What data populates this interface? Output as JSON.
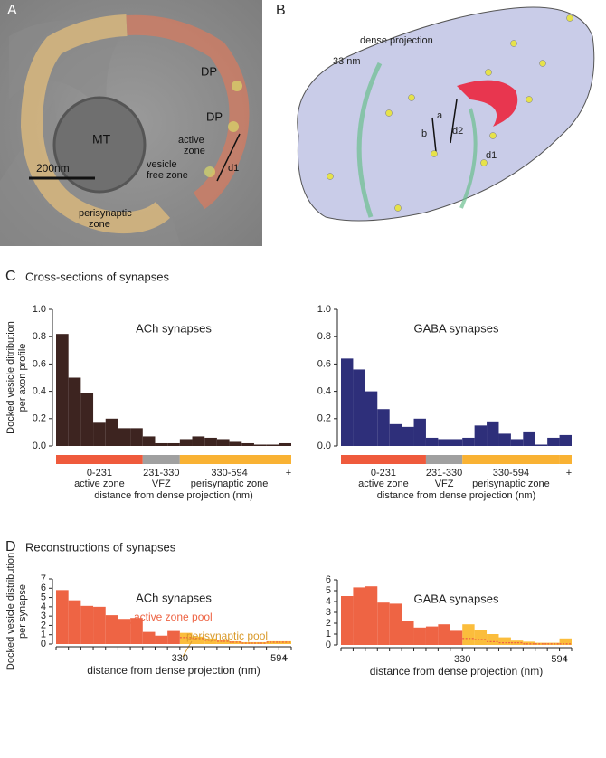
{
  "panels": {
    "A": {
      "letter": "A",
      "labels": [
        "MT",
        "DP",
        "DP",
        "active",
        "zone",
        "vesicle",
        "free zone",
        "d1",
        "perisynaptic",
        "zone"
      ],
      "scale": "200nm"
    },
    "B": {
      "letter": "B",
      "labels": [
        "dense projection",
        "33 nm",
        "a",
        "b",
        "d2",
        "d1"
      ]
    }
  },
  "sections": [
    {
      "letter": "C",
      "title": "Cross-sections of synapses"
    },
    {
      "letter": "D",
      "title": "Reconstructions of synapses"
    }
  ],
  "chart_data": [
    {
      "type": "histogram",
      "title": "ACh synapses",
      "y_label": [
        "Docked vesicle ditribution",
        "per axon profile"
      ],
      "x_label": "distance from dense projection (nm)",
      "bins": [
        0,
        33,
        66,
        99,
        132,
        165,
        198,
        231,
        264,
        297,
        330,
        363,
        396,
        429,
        462,
        495,
        528,
        561,
        594,
        627
      ],
      "values": [
        0.82,
        0.5,
        0.39,
        0.17,
        0.2,
        0.13,
        0.13,
        0.07,
        0.02,
        0.02,
        0.05,
        0.07,
        0.06,
        0.05,
        0.03,
        0.02,
        0.01,
        0.01,
        0.02
      ],
      "color": "#3d2420",
      "xlim": [
        0,
        627
      ],
      "ylim": [
        0,
        1.0
      ],
      "yticks": [
        {
          "value": 0,
          "label": "0.0"
        },
        0.2,
        0.4,
        0.6,
        0.8,
        {
          "value": 1,
          "label": "1.0"
        }
      ],
      "regions": [
        {
          "label": "0-231",
          "sublabel": "active zone",
          "range": [
            0,
            231
          ],
          "color": "#ef5a3c"
        },
        {
          "label": "231-330",
          "sublabel": "VFZ",
          "range": [
            231,
            330
          ],
          "color": "#a0a0a0"
        },
        {
          "label": "330-594",
          "sublabel": "perisynaptic zone",
          "range": [
            330,
            594
          ],
          "color": "#f9b233"
        },
        {
          "label": "+",
          "range": [
            594,
            627
          ],
          "color": "#f9b233"
        }
      ]
    },
    {
      "type": "histogram",
      "title": "GABA synapses",
      "x_label": "distance from dense projection (nm)",
      "bins": [
        0,
        33,
        66,
        99,
        132,
        165,
        198,
        231,
        264,
        297,
        330,
        363,
        396,
        429,
        462,
        495,
        528,
        561,
        594,
        627
      ],
      "values": [
        0.64,
        0.56,
        0.4,
        0.27,
        0.16,
        0.14,
        0.2,
        0.06,
        0.05,
        0.05,
        0.06,
        0.15,
        0.18,
        0.09,
        0.05,
        0.1,
        0.01,
        0.06,
        0.08
      ],
      "color": "#2e2f7a",
      "xlim": [
        0,
        627
      ],
      "ylim": [
        0,
        1.0
      ],
      "yticks": [
        {
          "value": 0,
          "label": "0.0"
        },
        0.2,
        0.4,
        0.6,
        0.8,
        {
          "value": 1,
          "label": "1.0"
        }
      ],
      "regions": [
        {
          "label": "0-231",
          "sublabel": "active zone",
          "range": [
            0,
            231
          ],
          "color": "#ef5a3c"
        },
        {
          "label": "231-330",
          "sublabel": "VFZ",
          "range": [
            231,
            330
          ],
          "color": "#a0a0a0"
        },
        {
          "label": "330-594",
          "sublabel": "perisynaptic zone",
          "range": [
            330,
            594
          ],
          "color": "#f9b233"
        },
        {
          "label": "+",
          "range": [
            594,
            627
          ],
          "color": "#f9b233"
        }
      ]
    },
    {
      "type": "histogram",
      "title": "ACh synapses",
      "y_label": [
        "Docked vesicle distribution",
        "per synapse"
      ],
      "x_label": "distance from dense projection (nm)",
      "legend": true,
      "bins": [
        0,
        33,
        66,
        99,
        132,
        165,
        198,
        231,
        264,
        297,
        330,
        363,
        396,
        429,
        462,
        495,
        528,
        561,
        594,
        627
      ],
      "series": [
        {
          "name": "active zone pool",
          "color": "#ee6444",
          "values": [
            5.8,
            4.7,
            4.1,
            4.0,
            3.1,
            2.7,
            2.8,
            1.3,
            0.9,
            1.4,
            0.7,
            0.6,
            0.4,
            0.3,
            0.2,
            0.1,
            0.1,
            0.2,
            0.2
          ]
        },
        {
          "name": "perisynaptic pool",
          "color": "#fbbd3c",
          "values": [
            null,
            null,
            null,
            null,
            null,
            null,
            null,
            null,
            null,
            null,
            1.2,
            0.8,
            0.6,
            0.4,
            0.3,
            0.2,
            0.2,
            0.3,
            0.3
          ]
        }
      ],
      "xlim": [
        0,
        627
      ],
      "ylim": [
        0,
        7
      ],
      "yticks": [
        0,
        1,
        2,
        3,
        4,
        5,
        6,
        7
      ],
      "xticks": [
        330,
        594,
        {
          "value": 610.5,
          "label": "+"
        }
      ]
    },
    {
      "type": "histogram",
      "title": "GABA synapses",
      "x_label": "distance from dense projection (nm)",
      "legend": false,
      "bins": [
        0,
        33,
        66,
        99,
        132,
        165,
        198,
        231,
        264,
        297,
        330,
        363,
        396,
        429,
        462,
        495,
        528,
        561,
        594,
        627
      ],
      "series": [
        {
          "name": "active zone pool",
          "color": "#ee6444",
          "values": [
            4.5,
            5.3,
            5.4,
            3.9,
            3.8,
            2.2,
            1.6,
            1.7,
            1.9,
            1.3,
            0.6,
            0.5,
            0.3,
            0.2,
            0.2,
            0.1,
            0.1,
            0.1,
            0.1
          ]
        },
        {
          "name": "perisynaptic pool",
          "color": "#fbbd3c",
          "values": [
            null,
            null,
            null,
            null,
            null,
            null,
            null,
            null,
            null,
            null,
            1.9,
            1.4,
            1.0,
            0.7,
            0.4,
            0.3,
            0.2,
            0.2,
            0.6
          ]
        }
      ],
      "xlim": [
        0,
        627
      ],
      "ylim": [
        0,
        6
      ],
      "yticks": [
        0,
        1,
        2,
        3,
        4,
        5,
        6
      ],
      "xticks": [
        330,
        594,
        {
          "value": 610.5,
          "label": "+"
        }
      ]
    }
  ]
}
